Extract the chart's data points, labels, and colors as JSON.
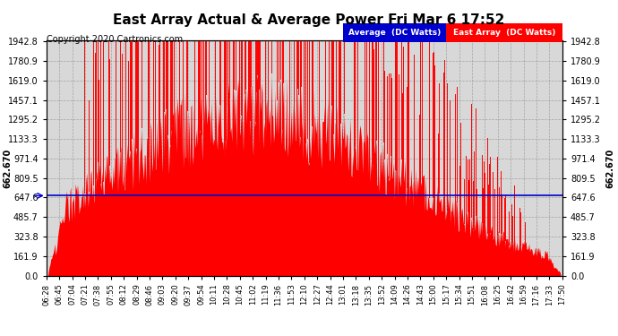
{
  "title": "East Array Actual & Average Power Fri Mar 6 17:52",
  "copyright": "Copyright 2020 Cartronics.com",
  "legend_avg": "Average  (DC Watts)",
  "legend_east": "East Array  (DC Watts)",
  "avg_value": 662.67,
  "ymax": 1942.8,
  "ytick_vals": [
    0.0,
    161.9,
    323.8,
    485.7,
    647.6,
    809.5,
    971.4,
    1133.3,
    1295.2,
    1457.1,
    1619.0,
    1780.9,
    1942.8
  ],
  "ytick_labels": [
    "0.0",
    "161.9",
    "323.8",
    "485.7",
    "647.6",
    "809.5",
    "971.4",
    "1133.3",
    "1295.2",
    "1457.1",
    "1619.0",
    "1780.9",
    "1942.8"
  ],
  "avg_label": "662.670",
  "bg_color": "#d8d8d8",
  "bar_color": "#ff0000",
  "avg_line_color": "#0000cc",
  "xtick_labels": [
    "06:28",
    "06:45",
    "07:04",
    "07:21",
    "07:38",
    "07:55",
    "08:12",
    "08:29",
    "08:46",
    "09:03",
    "09:20",
    "09:37",
    "09:54",
    "10:11",
    "10:28",
    "10:45",
    "11:02",
    "11:19",
    "11:36",
    "11:53",
    "12:10",
    "12:27",
    "12:44",
    "13:01",
    "13:18",
    "13:35",
    "13:52",
    "14:09",
    "14:26",
    "14:43",
    "15:00",
    "15:17",
    "15:34",
    "15:51",
    "16:08",
    "16:25",
    "16:42",
    "16:59",
    "17:16",
    "17:33",
    "17:50"
  ],
  "num_points": 680,
  "seed": 12345
}
